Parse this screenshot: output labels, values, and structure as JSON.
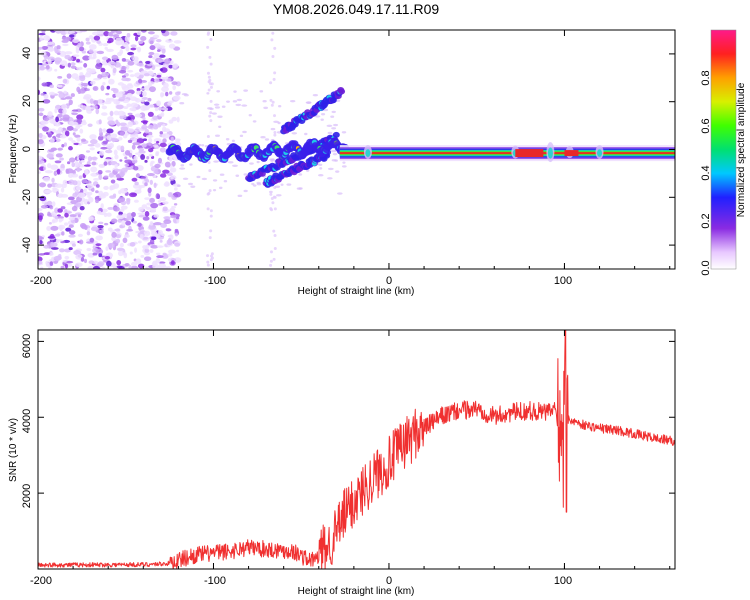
{
  "chart_data": [
    {
      "id": "spectrogram",
      "type": "heatmap",
      "title": "YM08.2026.049.17.11.R09",
      "xlabel": "Height of straight line (km)",
      "ylabel": "Frequency (Hz)",
      "xlim": [
        -200,
        163
      ],
      "ylim": [
        -50,
        50
      ],
      "xticks": [
        "-200",
        "-100",
        "0",
        "100"
      ],
      "yticks": [
        "-40",
        "-20",
        "0",
        "20",
        "40"
      ],
      "colorbar": {
        "label": "Normalized spectral amplitude",
        "range": [
          0,
          1
        ],
        "ticks": [
          "0.0",
          "0.2",
          "0.4",
          "0.6",
          "0.8"
        ]
      },
      "features": [
        {
          "name": "speckle-noise",
          "x_range": [
            -200,
            -120
          ],
          "freq_range": [
            -50,
            50
          ]
        },
        {
          "name": "main-line",
          "x_range": [
            -125,
            163
          ],
          "freq_hz": -1.5
        },
        {
          "name": "upper-branch",
          "x_start": -60,
          "x_end": -27,
          "freq_start": 8,
          "freq_end": 24
        },
        {
          "name": "lower-branch-1",
          "x_start": -80,
          "x_end": -30,
          "freq_start": -12,
          "freq_end": 5
        },
        {
          "name": "lower-branch-2",
          "x_start": -70,
          "x_end": -35,
          "freq_start": -14,
          "freq_end": -2
        }
      ]
    },
    {
      "id": "snr",
      "type": "line",
      "xlabel": "Height of straight line (km)",
      "ylabel": "SNR (10 * v/v)",
      "xlim": [
        -200,
        163
      ],
      "ylim": [
        0,
        6300
      ],
      "xticks": [
        "-200",
        "-100",
        "0",
        "100"
      ],
      "yticks": [
        "2000",
        "4000",
        "6000"
      ],
      "color": "#f03030",
      "series": [
        {
          "name": "SNR envelope",
          "x": [
            -200,
            -140,
            -125,
            -110,
            -90,
            -80,
            -70,
            -55,
            -45,
            -40,
            -35,
            -30,
            -25,
            -20,
            -10,
            0,
            10,
            20,
            30,
            40,
            50,
            60,
            70,
            80,
            90,
            95,
            98,
            100,
            102,
            105,
            110,
            120,
            130,
            140,
            150,
            163
          ],
          "values": [
            100,
            110,
            140,
            350,
            450,
            550,
            500,
            450,
            200,
            280,
            500,
            900,
            1400,
            1700,
            2300,
            2750,
            3300,
            3700,
            4000,
            4150,
            4200,
            4000,
            4100,
            4150,
            4100,
            4200,
            3000,
            3500,
            3900,
            3900,
            3800,
            3700,
            3650,
            3550,
            3450,
            3350
          ]
        }
      ]
    }
  ]
}
